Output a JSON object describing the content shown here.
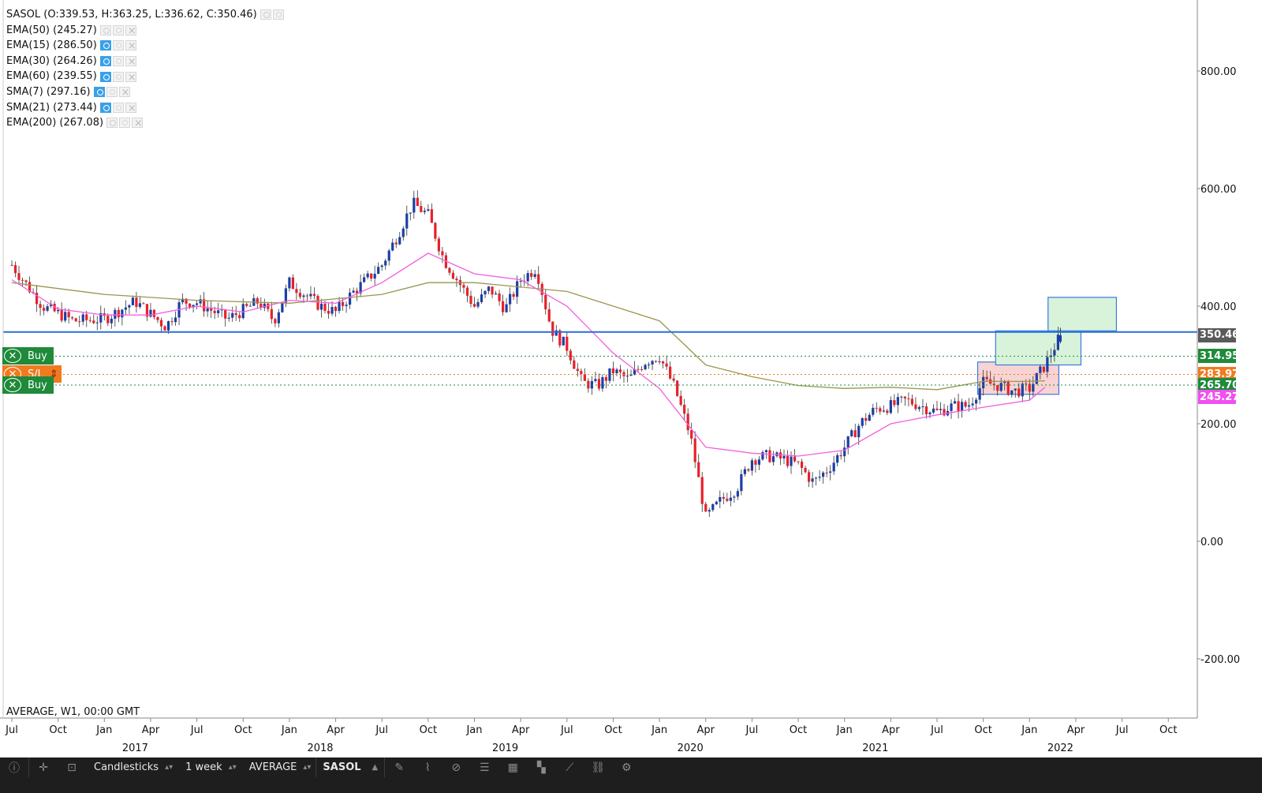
{
  "legend": {
    "symbol_line": "SASOL (O:339.53, H:363.25, L:336.62, C:350.46)",
    "indicators": [
      {
        "label": "EMA(50) (245.27)",
        "eye": "off"
      },
      {
        "label": "EMA(15) (286.50)",
        "eye": "on"
      },
      {
        "label": "EMA(30) (264.26)",
        "eye": "on"
      },
      {
        "label": "EMA(60) (239.55)",
        "eye": "on"
      },
      {
        "label": "SMA(7) (297.16)",
        "eye": "on"
      },
      {
        "label": "SMA(21) (273.44)",
        "eye": "on"
      },
      {
        "label": "EMA(200) (267.08)",
        "eye": "off"
      }
    ]
  },
  "orders": [
    {
      "label": "Buy",
      "kind": "buy",
      "price": 314.95
    },
    {
      "label": "S/L",
      "kind": "sl",
      "price": 283.97
    },
    {
      "label": "Buy",
      "kind": "buy",
      "price": 265.7
    }
  ],
  "price_tags": [
    {
      "text": "350.46",
      "value": 350.46,
      "color": "#5a5a5a"
    },
    {
      "text": "314.95",
      "value": 314.95,
      "color": "#1e8a3a"
    },
    {
      "text": "283.97",
      "value": 283.97,
      "color": "#f07a1e"
    },
    {
      "text": "265.70",
      "value": 265.7,
      "color": "#1e8a3a"
    },
    {
      "text": "245.27",
      "value": 245.27,
      "color": "#f050f0"
    }
  ],
  "source_line": "AVERAGE, W1, 00:00 GMT",
  "toolbar": {
    "chart_type": "Candlesticks",
    "timeframe": "1 week",
    "price_source": "AVERAGE",
    "symbol": "SASOL",
    "icons": [
      "info-icon",
      "crosshair-icon",
      "crop-icon",
      "pencil-icon",
      "brush-icon",
      "hide-icon",
      "list-icon",
      "grid-icon",
      "layers-icon",
      "line-icon",
      "link-icon",
      "settings-icon"
    ]
  },
  "colors": {
    "up_candle": "#1b3fa6",
    "down_candle": "#e8202a",
    "ema_short": "#f060e0",
    "ema_long": "#9a9650",
    "horizontal_line": "#2a6fd6",
    "buy_dotted": "#1e8a3a",
    "sl_dotted": "#f07a1e"
  },
  "chart_data": {
    "type": "candlestick",
    "title": "SASOL",
    "y_ticks": [
      "800.00",
      "600.00",
      "400.00",
      "200.00",
      "0.00",
      "-200.00"
    ],
    "y_tick_values": [
      800,
      600,
      400,
      200,
      0,
      -200
    ],
    "ylim": [
      -300,
      920
    ],
    "x_month_labels": [
      "Jul",
      "Oct",
      "Jan",
      "Apr",
      "Jul",
      "Oct",
      "Jan",
      "Apr",
      "Jul",
      "Oct",
      "Jan",
      "Apr",
      "Jul",
      "Oct",
      "Jan",
      "Apr",
      "Jul",
      "Oct",
      "Jan",
      "Apr",
      "Jul",
      "Oct",
      "Jan",
      "Apr",
      "Jul",
      "Oct"
    ],
    "x_month_dates": [
      "2016-07",
      "2016-10",
      "2017-01",
      "2017-04",
      "2017-07",
      "2017-10",
      "2018-01",
      "2018-04",
      "2018-07",
      "2018-10",
      "2019-01",
      "2019-04",
      "2019-07",
      "2019-10",
      "2020-01",
      "2020-04",
      "2020-07",
      "2020-10",
      "2021-01",
      "2021-04",
      "2021-07",
      "2021-10",
      "2022-01",
      "2022-04",
      "2022-07",
      "2022-10"
    ],
    "x_year_labels": [
      "2017",
      "2018",
      "2019",
      "2020",
      "2021",
      "2022"
    ],
    "x_year_dates": [
      "2017-03",
      "2018-03",
      "2019-03",
      "2020-03",
      "2021-03",
      "2022-03"
    ],
    "price_path": [
      [
        "2016-07",
        470
      ],
      [
        "2016-09",
        400
      ],
      [
        "2016-11",
        375
      ],
      [
        "2017-01",
        378
      ],
      [
        "2017-03",
        408
      ],
      [
        "2017-05",
        365
      ],
      [
        "2017-06",
        408
      ],
      [
        "2017-07",
        406
      ],
      [
        "2017-09",
        378
      ],
      [
        "2017-11",
        408
      ],
      [
        "2017-12",
        375
      ],
      [
        "2018-01",
        440
      ],
      [
        "2018-03",
        400
      ],
      [
        "2018-04",
        390
      ],
      [
        "2018-05",
        420
      ],
      [
        "2018-07",
        470
      ],
      [
        "2018-08",
        520
      ],
      [
        "2018-09",
        575
      ],
      [
        "2018-10",
        555
      ],
      [
        "2018-11",
        480
      ],
      [
        "2019-01",
        400
      ],
      [
        "2019-02",
        430
      ],
      [
        "2019-03",
        395
      ],
      [
        "2019-04",
        445
      ],
      [
        "2019-05",
        465
      ],
      [
        "2019-06",
        360
      ],
      [
        "2019-07",
        330
      ],
      [
        "2019-08",
        270
      ],
      [
        "2019-09",
        265
      ],
      [
        "2019-10",
        290
      ],
      [
        "2019-11",
        275
      ],
      [
        "2019-12",
        305
      ],
      [
        "2020-01",
        315
      ],
      [
        "2020-02",
        260
      ],
      [
        "2020-03",
        180
      ],
      [
        "2020-04",
        40
      ],
      [
        "2020-05",
        70
      ],
      [
        "2020-06",
        90
      ],
      [
        "2020-07",
        140
      ],
      [
        "2020-08",
        145
      ],
      [
        "2020-09",
        140
      ],
      [
        "2020-10",
        130
      ],
      [
        "2020-11",
        100
      ],
      [
        "2020-12",
        125
      ],
      [
        "2021-01",
        160
      ],
      [
        "2021-02",
        200
      ],
      [
        "2021-03",
        225
      ],
      [
        "2021-04",
        230
      ],
      [
        "2021-05",
        240
      ],
      [
        "2021-06",
        230
      ],
      [
        "2021-07",
        220
      ],
      [
        "2021-08",
        230
      ],
      [
        "2021-09",
        230
      ],
      [
        "2021-10",
        270
      ],
      [
        "2021-11",
        265
      ],
      [
        "2021-12",
        255
      ],
      [
        "2022-01",
        260
      ],
      [
        "2022-02",
        300
      ],
      [
        "2022-03",
        350
      ]
    ],
    "horizontal_line": 356,
    "ema_short_path": [
      [
        "2016-07",
        445
      ],
      [
        "2016-10",
        395
      ],
      [
        "2017-01",
        385
      ],
      [
        "2017-04",
        385
      ],
      [
        "2017-07",
        400
      ],
      [
        "2017-10",
        390
      ],
      [
        "2018-01",
        410
      ],
      [
        "2018-04",
        405
      ],
      [
        "2018-07",
        440
      ],
      [
        "2018-10",
        490
      ],
      [
        "2019-01",
        455
      ],
      [
        "2019-04",
        445
      ],
      [
        "2019-07",
        400
      ],
      [
        "2019-10",
        320
      ],
      [
        "2020-01",
        260
      ],
      [
        "2020-04",
        160
      ],
      [
        "2020-07",
        150
      ],
      [
        "2020-10",
        145
      ],
      [
        "2021-01",
        155
      ],
      [
        "2021-04",
        200
      ],
      [
        "2021-07",
        215
      ],
      [
        "2021-10",
        228
      ],
      [
        "2022-01",
        240
      ],
      [
        "2022-02",
        262
      ]
    ],
    "ema_long_path": [
      [
        "2016-07",
        440
      ],
      [
        "2017-01",
        420
      ],
      [
        "2017-07",
        410
      ],
      [
        "2018-01",
        405
      ],
      [
        "2018-07",
        420
      ],
      [
        "2018-10",
        440
      ],
      [
        "2019-01",
        440
      ],
      [
        "2019-07",
        425
      ],
      [
        "2019-10",
        400
      ],
      [
        "2020-01",
        375
      ],
      [
        "2020-04",
        300
      ],
      [
        "2020-07",
        280
      ],
      [
        "2020-10",
        265
      ],
      [
        "2021-01",
        260
      ],
      [
        "2021-04",
        262
      ],
      [
        "2021-07",
        258
      ],
      [
        "2021-10",
        272
      ],
      [
        "2022-01",
        272
      ],
      [
        "2022-02",
        273
      ]
    ],
    "zones": [
      {
        "x1": "2021-09-20",
        "x2": "2022-02-28",
        "y1": 250,
        "y2": 305,
        "fill": "#f8d3d3",
        "stroke": "#3a7ce0"
      },
      {
        "x1": "2021-10-25",
        "x2": "2022-04-11",
        "y1": 300,
        "y2": 358,
        "fill": "#d8f3da",
        "stroke": "#3a7ce0"
      },
      {
        "x1": "2022-02-07",
        "x2": "2022-06-20",
        "y1": 358,
        "y2": 415,
        "fill": "#d8f3da",
        "stroke": "#3a7ce0"
      }
    ]
  }
}
